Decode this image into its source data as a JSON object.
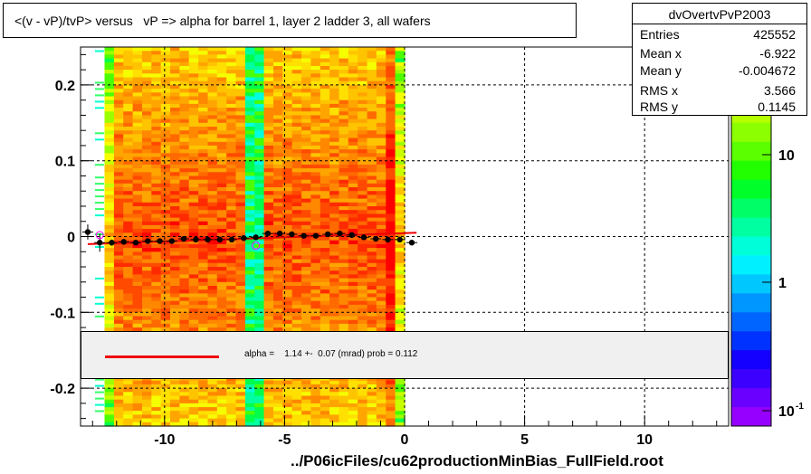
{
  "title": "<(v - vP)/tvP> versus   vP => alpha for barrel 1, layer 2 ladder 3, all wafers",
  "footer": "../P06icFiles/cu62productionMinBias_FullField.root",
  "stats": {
    "name": "dvOvertvPvP2003",
    "rows": [
      {
        "label": "Entries",
        "value": "425552"
      },
      {
        "label": "Mean x",
        "value": "-6.922"
      },
      {
        "label": "Mean y",
        "value": "-0.004672"
      },
      {
        "label": "RMS x",
        "value": "3.566"
      },
      {
        "label": "RMS y",
        "value": "0.1145"
      }
    ]
  },
  "fit": {
    "text": "alpha =    1.14 +-  0.07 (mrad) prob = 0.112",
    "line_color": "#ee0000"
  },
  "chart_data": {
    "type": "heatmap",
    "xlim": [
      -13.5,
      13.5
    ],
    "ylim": [
      -0.25,
      0.25
    ],
    "x_ticks": [
      -10,
      -5,
      0,
      5,
      10
    ],
    "x_tick_labels": [
      "-10",
      "-5",
      "0",
      "5",
      "10"
    ],
    "y_ticks": [
      -0.2,
      -0.1,
      0,
      0.1,
      0.2
    ],
    "y_tick_labels": [
      "-0.2",
      "-0.1",
      "0",
      "0.1",
      "0.2"
    ],
    "grid": true,
    "z_scale": "log",
    "z_tick_labels": [
      "10",
      "1",
      "10"
    ],
    "z_min_label_exponent": "-1",
    "heat_x_range": [
      -12.5,
      0
    ],
    "heat_y_range": [
      -0.25,
      0.25
    ],
    "profile_points": [
      {
        "x": -13.2,
        "y": 0.006,
        "err": 0.01
      },
      {
        "x": -12.7,
        "y": -0.008,
        "err": 0.012
      },
      {
        "x": -12.2,
        "y": -0.008,
        "err": 0.004
      },
      {
        "x": -11.7,
        "y": -0.007,
        "err": 0.003
      },
      {
        "x": -11.2,
        "y": -0.008,
        "err": 0.003
      },
      {
        "x": -10.7,
        "y": -0.006,
        "err": 0.003
      },
      {
        "x": -10.2,
        "y": -0.006,
        "err": 0.003
      },
      {
        "x": -9.7,
        "y": -0.006,
        "err": 0.002
      },
      {
        "x": -9.2,
        "y": -0.003,
        "err": 0.002
      },
      {
        "x": -8.7,
        "y": -0.004,
        "err": 0.002
      },
      {
        "x": -8.2,
        "y": -0.004,
        "err": 0.002
      },
      {
        "x": -7.7,
        "y": -0.004,
        "err": 0.002
      },
      {
        "x": -7.2,
        "y": -0.004,
        "err": 0.002
      },
      {
        "x": -6.7,
        "y": -0.002,
        "err": 0.002
      },
      {
        "x": -6.2,
        "y": -0.001,
        "err": 0.003
      },
      {
        "x": -5.7,
        "y": 0.004,
        "err": 0.002
      },
      {
        "x": -5.2,
        "y": 0.004,
        "err": 0.002
      },
      {
        "x": -4.7,
        "y": 0.003,
        "err": 0.002
      },
      {
        "x": -4.2,
        "y": 0.001,
        "err": 0.002
      },
      {
        "x": -3.7,
        "y": 0.001,
        "err": 0.002
      },
      {
        "x": -3.2,
        "y": 0.003,
        "err": 0.002
      },
      {
        "x": -2.7,
        "y": 0.004,
        "err": 0.002
      },
      {
        "x": -2.2,
        "y": 0.002,
        "err": 0.002
      },
      {
        "x": -1.7,
        "y": -0.001,
        "err": 0.002
      },
      {
        "x": -1.2,
        "y": -0.003,
        "err": 0.002
      },
      {
        "x": -0.7,
        "y": -0.004,
        "err": 0.002
      },
      {
        "x": -0.2,
        "y": -0.004,
        "err": 0.002
      },
      {
        "x": 0.3,
        "y": -0.008,
        "err": 0.002
      }
    ],
    "open_markers": [
      {
        "x": -12.7,
        "y": 0.002
      },
      {
        "x": -6.2,
        "y": -0.012
      }
    ],
    "fit_line": {
      "x": [
        -13.2,
        0.5
      ],
      "y": [
        -0.01,
        0.005
      ]
    }
  }
}
